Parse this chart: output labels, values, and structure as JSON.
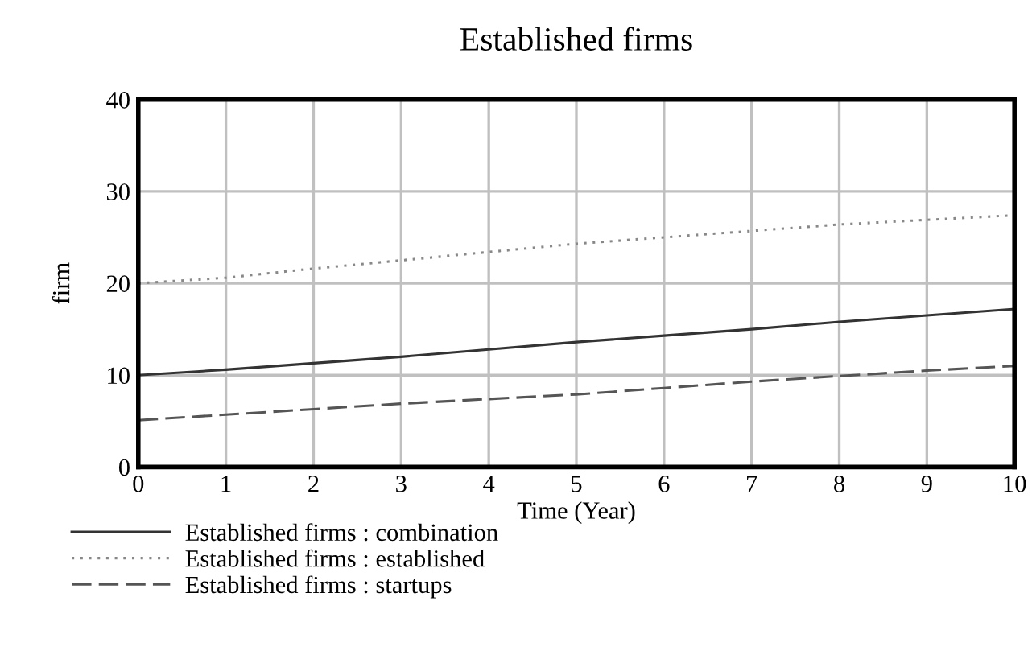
{
  "chart_data": {
    "type": "line",
    "title": "Established firms",
    "xlabel": "Time (Year)",
    "ylabel": "firm",
    "x": [
      0,
      1,
      2,
      3,
      4,
      5,
      6,
      7,
      8,
      9,
      10
    ],
    "series": [
      {
        "name": "Established firms : combination",
        "color": "#333333",
        "line_style": "solid",
        "values": [
          10,
          10.6,
          11.3,
          12.0,
          12.8,
          13.6,
          14.3,
          15.0,
          15.8,
          16.5,
          17.2
        ]
      },
      {
        "name": "Established firms : established",
        "color": "#888888",
        "line_style": "dotted",
        "values": [
          20,
          20.6,
          21.6,
          22.5,
          23.4,
          24.3,
          25.0,
          25.7,
          26.4,
          26.9,
          27.4
        ]
      },
      {
        "name": "Established firms : startups",
        "color": "#555555",
        "line_style": "dashed",
        "values": [
          5.1,
          5.7,
          6.3,
          6.9,
          7.4,
          7.9,
          8.6,
          9.3,
          9.9,
          10.5,
          11.0
        ]
      }
    ],
    "xlim": [
      0,
      10
    ],
    "xticks": [
      0,
      1,
      2,
      3,
      4,
      5,
      6,
      7,
      8,
      9,
      10
    ],
    "ylim": [
      0,
      40
    ],
    "yticks": [
      0,
      10,
      20,
      30,
      40
    ],
    "grid": true,
    "legend": "bottom"
  }
}
